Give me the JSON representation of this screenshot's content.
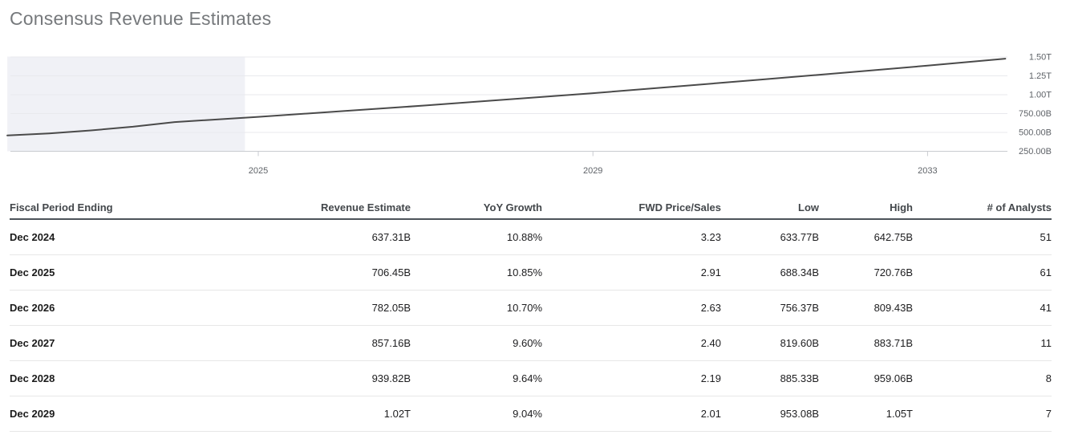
{
  "page": {
    "title": "Consensus Revenue Estimates"
  },
  "colors": {
    "title": "#76797c",
    "chart_line": "#4a4a4a",
    "gridline": "#e8e9ed",
    "axis_line": "#c9cbd0",
    "tick_label": "#5f6368",
    "history_shade": "#f0f1f6",
    "header_text": "#43474b",
    "header_underline": "#4d535a",
    "row_divider": "#e7e7e7",
    "cell_text": "#1d1d1f"
  },
  "chart_data": {
    "type": "line",
    "title": "",
    "xlabel": "",
    "ylabel": "",
    "legend": "none",
    "grid": "horizontal",
    "y_axis_side": "right",
    "x_range_years": [
      2022.0,
      2033.93
    ],
    "y_range_billions": [
      250,
      1500
    ],
    "x_ticks": [
      {
        "label": "2025",
        "year": 2025
      },
      {
        "label": "2029",
        "year": 2029
      },
      {
        "label": "2033",
        "year": 2033
      }
    ],
    "y_ticks": [
      {
        "label": "1.50T",
        "valueB": 1500
      },
      {
        "label": "1.25T",
        "valueB": 1250
      },
      {
        "label": "1.00T",
        "valueB": 1000
      },
      {
        "label": "750.00B",
        "valueB": 750
      },
      {
        "label": "500.00B",
        "valueB": 500
      },
      {
        "label": "250.00B",
        "valueB": 250
      }
    ],
    "shaded_history_region": {
      "from_year": 2022.0,
      "to_year": 2024.84
    },
    "series": [
      {
        "name": "Revenue Estimate",
        "points_year_valueB": [
          [
            2022.0,
            460
          ],
          [
            2022.5,
            487
          ],
          [
            2023.0,
            527
          ],
          [
            2023.5,
            576
          ],
          [
            2024.0,
            637.31
          ],
          [
            2025.0,
            706.45
          ],
          [
            2026.0,
            782.05
          ],
          [
            2027.0,
            857.16
          ],
          [
            2028.0,
            939.82
          ],
          [
            2029.0,
            1020
          ],
          [
            2030.0,
            1108
          ],
          [
            2031.0,
            1200
          ],
          [
            2032.0,
            1292
          ],
          [
            2033.0,
            1385
          ],
          [
            2033.93,
            1478
          ]
        ]
      }
    ]
  },
  "table": {
    "columns": [
      {
        "label": "Fiscal Period Ending",
        "align": "left"
      },
      {
        "label": "Revenue Estimate",
        "align": "right"
      },
      {
        "label": "YoY Growth",
        "align": "right"
      },
      {
        "label": "FWD Price/Sales",
        "align": "right"
      },
      {
        "label": "Low",
        "align": "right"
      },
      {
        "label": "High",
        "align": "right"
      },
      {
        "label": "# of Analysts",
        "align": "right"
      }
    ],
    "rows": [
      [
        "Dec 2024",
        "637.31B",
        "10.88%",
        "3.23",
        "633.77B",
        "642.75B",
        "51"
      ],
      [
        "Dec 2025",
        "706.45B",
        "10.85%",
        "2.91",
        "688.34B",
        "720.76B",
        "61"
      ],
      [
        "Dec 2026",
        "782.05B",
        "10.70%",
        "2.63",
        "756.37B",
        "809.43B",
        "41"
      ],
      [
        "Dec 2027",
        "857.16B",
        "9.60%",
        "2.40",
        "819.60B",
        "883.71B",
        "11"
      ],
      [
        "Dec 2028",
        "939.82B",
        "9.64%",
        "2.19",
        "885.33B",
        "959.06B",
        "8"
      ],
      [
        "Dec 2029",
        "1.02T",
        "9.04%",
        "2.01",
        "953.08B",
        "1.05T",
        "7"
      ]
    ]
  }
}
